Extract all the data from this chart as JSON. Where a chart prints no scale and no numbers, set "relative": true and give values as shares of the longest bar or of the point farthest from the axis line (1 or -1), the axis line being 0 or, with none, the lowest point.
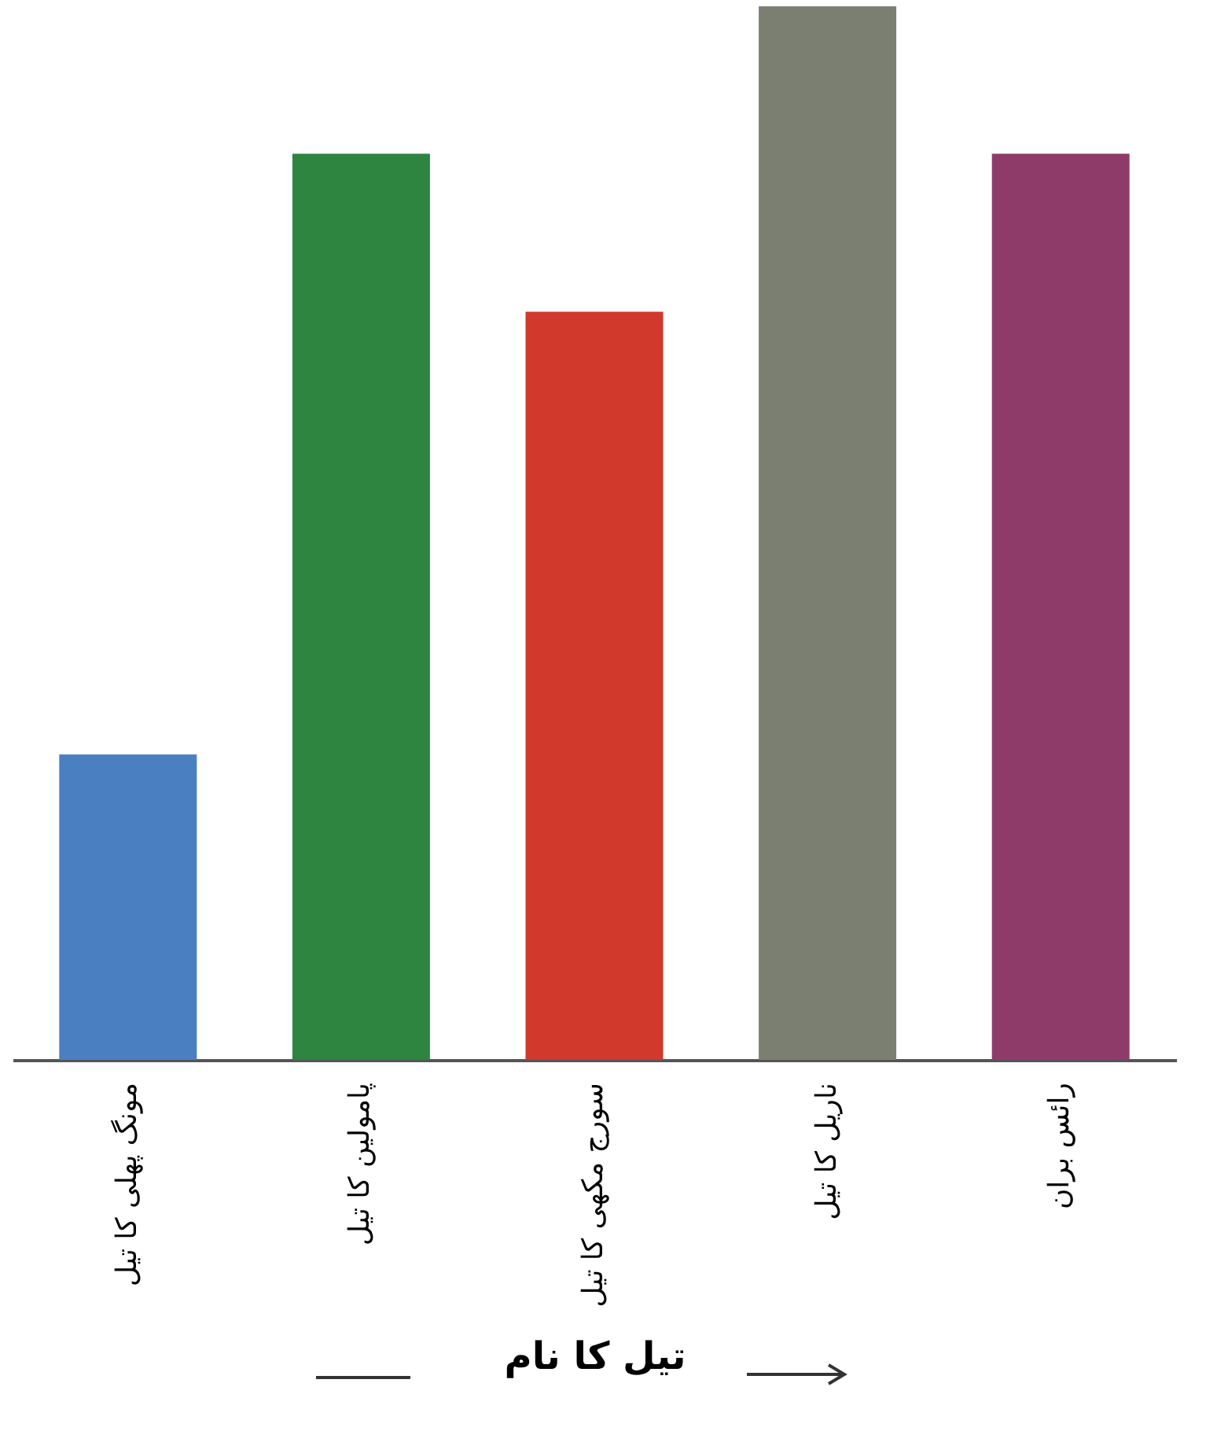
{
  "chart_data": {
    "type": "bar",
    "relative": true,
    "xlabel": "تیل کا نام",
    "categories": [
      "مونگ پھلی کا تیل",
      "پامولین کا تیل",
      "سورج مکھی کا تیل",
      "ناریل کا تیل",
      "رائس بران"
    ],
    "values": [
      0.29,
      0.86,
      0.71,
      1,
      0.86
    ],
    "colors": [
      "#4a7fc1",
      "#2e8540",
      "#d0392b",
      "#7a7f72",
      "#8e3b6a"
    ],
    "grid": false,
    "legend": false
  }
}
